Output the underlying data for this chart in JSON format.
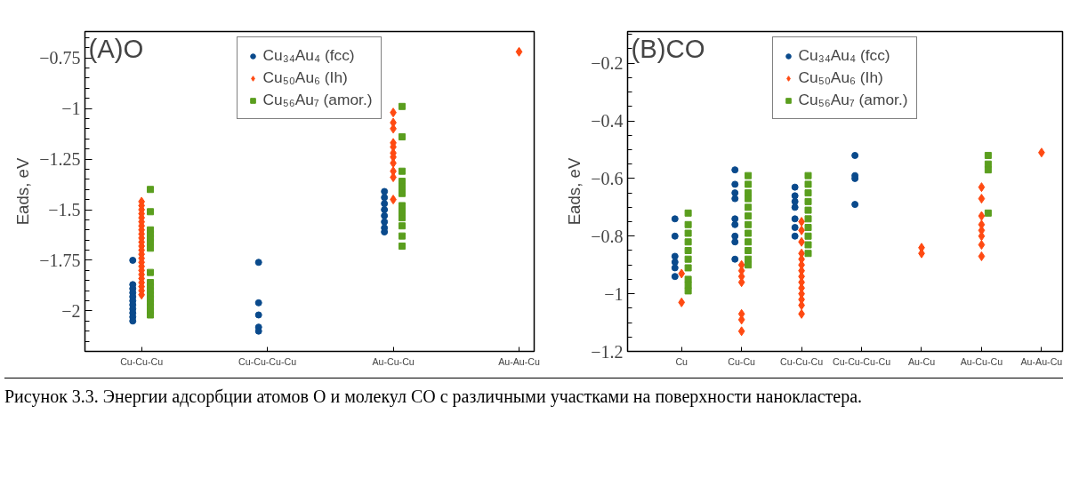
{
  "chart_data": [
    {
      "type": "scatter",
      "title": "(A)O",
      "ylabel": "Eads, eV",
      "categories": [
        "Cu-Cu-Cu",
        "Cu-Cu-Cu-Cu",
        "Au-Cu-Cu",
        "Au-Au-Cu"
      ],
      "ylim": [
        -2.2,
        -0.62
      ],
      "yticks": [
        {
          "value": -0.75,
          "label": "−0.75"
        },
        {
          "value": -1,
          "label": "−1"
        },
        {
          "value": -1.25,
          "label": "−1.25"
        },
        {
          "value": -1.5,
          "label": "−1.5"
        },
        {
          "value": -1.75,
          "label": "−1.75"
        },
        {
          "value": -2,
          "label": "−2"
        }
      ],
      "grid": false,
      "legend": "top",
      "annotations": [
        "Рисунок 3.3. Энергии адсорбции атомов О и молекул СО с различными участками на поверхности нанокластера."
      ],
      "series": [
        {
          "name": "Cu₃₄Au₄ (fcc)",
          "color": "#0a4a8c",
          "marker": "circle",
          "x": [
            "Cu-Cu-Cu",
            "Cu-Cu-Cu",
            "Cu-Cu-Cu",
            "Cu-Cu-Cu",
            "Cu-Cu-Cu",
            "Cu-Cu-Cu",
            "Cu-Cu-Cu",
            "Cu-Cu-Cu",
            "Cu-Cu-Cu",
            "Cu-Cu-Cu",
            "Cu-Cu-Cu",
            "Cu-Cu-Cu-Cu",
            "Cu-Cu-Cu-Cu",
            "Cu-Cu-Cu-Cu",
            "Cu-Cu-Cu-Cu",
            "Cu-Cu-Cu-Cu",
            "Au-Cu-Cu",
            "Au-Cu-Cu",
            "Au-Cu-Cu",
            "Au-Cu-Cu",
            "Au-Cu-Cu",
            "Au-Cu-Cu",
            "Au-Cu-Cu",
            "Au-Cu-Cu"
          ],
          "values": [
            -1.75,
            -1.87,
            -1.89,
            -1.91,
            -1.93,
            -1.95,
            -1.97,
            -1.99,
            -2.01,
            -2.03,
            -2.05,
            -1.76,
            -1.96,
            -2.02,
            -2.08,
            -2.1,
            -1.41,
            -1.44,
            -1.47,
            -1.5,
            -1.53,
            -1.56,
            -1.59,
            -1.61
          ]
        },
        {
          "name": "Cu₅₀Au₆ (Ih)",
          "color": "#ff4a12",
          "marker": "diamond",
          "x": [
            "Cu-Cu-Cu",
            "Cu-Cu-Cu",
            "Cu-Cu-Cu",
            "Cu-Cu-Cu",
            "Cu-Cu-Cu",
            "Cu-Cu-Cu",
            "Cu-Cu-Cu",
            "Cu-Cu-Cu",
            "Cu-Cu-Cu",
            "Cu-Cu-Cu",
            "Cu-Cu-Cu",
            "Cu-Cu-Cu",
            "Cu-Cu-Cu",
            "Cu-Cu-Cu",
            "Cu-Cu-Cu",
            "Cu-Cu-Cu",
            "Cu-Cu-Cu",
            "Cu-Cu-Cu",
            "Cu-Cu-Cu",
            "Cu-Cu-Cu",
            "Cu-Cu-Cu",
            "Cu-Cu-Cu",
            "Cu-Cu-Cu",
            "Cu-Cu-Cu",
            "Au-Cu-Cu",
            "Au-Cu-Cu",
            "Au-Cu-Cu",
            "Au-Cu-Cu",
            "Au-Cu-Cu",
            "Au-Cu-Cu",
            "Au-Cu-Cu",
            "Au-Cu-Cu",
            "Au-Cu-Cu",
            "Au-Cu-Cu",
            "Au-Cu-Cu",
            "Au-Au-Cu"
          ],
          "values": [
            -1.46,
            -1.48,
            -1.5,
            -1.52,
            -1.54,
            -1.56,
            -1.58,
            -1.6,
            -1.62,
            -1.64,
            -1.66,
            -1.68,
            -1.7,
            -1.72,
            -1.74,
            -1.76,
            -1.78,
            -1.8,
            -1.82,
            -1.84,
            -1.86,
            -1.88,
            -1.9,
            -1.92,
            -1.02,
            -1.07,
            -1.1,
            -1.17,
            -1.19,
            -1.22,
            -1.24,
            -1.27,
            -1.31,
            -1.34,
            -1.45,
            -0.72
          ]
        },
        {
          "name": "Cu₅₆Au₇ (amor.)",
          "color": "#5a9e1e",
          "marker": "square",
          "x": [
            "Cu-Cu-Cu",
            "Cu-Cu-Cu",
            "Cu-Cu-Cu",
            "Cu-Cu-Cu",
            "Cu-Cu-Cu",
            "Cu-Cu-Cu",
            "Cu-Cu-Cu",
            "Cu-Cu-Cu",
            "Cu-Cu-Cu",
            "Cu-Cu-Cu",
            "Cu-Cu-Cu",
            "Cu-Cu-Cu",
            "Cu-Cu-Cu",
            "Cu-Cu-Cu",
            "Cu-Cu-Cu",
            "Cu-Cu-Cu",
            "Cu-Cu-Cu",
            "Au-Cu-Cu",
            "Au-Cu-Cu",
            "Au-Cu-Cu",
            "Au-Cu-Cu",
            "Au-Cu-Cu",
            "Au-Cu-Cu",
            "Au-Cu-Cu",
            "Au-Cu-Cu",
            "Au-Cu-Cu",
            "Au-Cu-Cu",
            "Au-Cu-Cu",
            "Au-Cu-Cu"
          ],
          "values": [
            -1.4,
            -1.51,
            -1.6,
            -1.62,
            -1.64,
            -1.66,
            -1.69,
            -1.81,
            -1.86,
            -1.88,
            -1.9,
            -1.92,
            -1.94,
            -1.96,
            -1.98,
            -2.0,
            -2.02,
            -0.99,
            -1.14,
            -1.31,
            -1.36,
            -1.39,
            -1.42,
            -1.48,
            -1.51,
            -1.54,
            -1.58,
            -1.63,
            -1.68
          ]
        }
      ]
    },
    {
      "type": "scatter",
      "title": "(B)CO",
      "ylabel": "Eads, eV",
      "categories": [
        "Cu",
        "Cu-Cu",
        "Cu-Cu-Cu",
        "Cu-Cu-Cu-Cu",
        "Au-Cu",
        "Au-Cu-Cu",
        "Au-Au-Cu"
      ],
      "ylim": [
        -1.2,
        -0.09
      ],
      "yticks": [
        {
          "value": -0.2,
          "label": "−0.2"
        },
        {
          "value": -0.4,
          "label": "−0.4"
        },
        {
          "value": -0.6,
          "label": "−0.6"
        },
        {
          "value": -0.8,
          "label": "−0.8"
        },
        {
          "value": -1,
          "label": "−1"
        },
        {
          "value": -1.2,
          "label": "−1.2"
        }
      ],
      "grid": false,
      "legend": "top",
      "series": [
        {
          "name": "Cu₃₄Au₄ (fcc)",
          "color": "#0a4a8c",
          "marker": "circle",
          "x": [
            "Cu",
            "Cu",
            "Cu",
            "Cu",
            "Cu",
            "Cu",
            "Cu-Cu",
            "Cu-Cu",
            "Cu-Cu",
            "Cu-Cu",
            "Cu-Cu",
            "Cu-Cu",
            "Cu-Cu",
            "Cu-Cu",
            "Cu-Cu",
            "Cu-Cu-Cu",
            "Cu-Cu-Cu",
            "Cu-Cu-Cu",
            "Cu-Cu-Cu",
            "Cu-Cu-Cu",
            "Cu-Cu-Cu",
            "Cu-Cu-Cu",
            "Cu-Cu-Cu-Cu",
            "Cu-Cu-Cu-Cu",
            "Cu-Cu-Cu-Cu",
            "Cu-Cu-Cu-Cu"
          ],
          "values": [
            -0.74,
            -0.8,
            -0.87,
            -0.89,
            -0.91,
            -0.94,
            -0.57,
            -0.62,
            -0.65,
            -0.67,
            -0.74,
            -0.76,
            -0.8,
            -0.82,
            -0.88,
            -0.63,
            -0.66,
            -0.68,
            -0.7,
            -0.74,
            -0.77,
            -0.8,
            -0.52,
            -0.59,
            -0.6,
            -0.69
          ]
        },
        {
          "name": "Cu₅₀Au₆ (Ih)",
          "color": "#ff4a12",
          "marker": "diamond",
          "x": [
            "Cu",
            "Cu",
            "Cu-Cu",
            "Cu-Cu",
            "Cu-Cu",
            "Cu-Cu",
            "Cu-Cu",
            "Cu-Cu",
            "Cu-Cu",
            "Cu-Cu-Cu",
            "Cu-Cu-Cu",
            "Cu-Cu-Cu",
            "Cu-Cu-Cu",
            "Cu-Cu-Cu",
            "Cu-Cu-Cu",
            "Cu-Cu-Cu",
            "Cu-Cu-Cu",
            "Cu-Cu-Cu",
            "Cu-Cu-Cu",
            "Cu-Cu-Cu",
            "Cu-Cu-Cu",
            "Cu-Cu-Cu",
            "Cu-Cu-Cu",
            "Au-Cu",
            "Au-Cu",
            "Au-Cu-Cu",
            "Au-Cu-Cu",
            "Au-Cu-Cu",
            "Au-Cu-Cu",
            "Au-Cu-Cu",
            "Au-Cu-Cu",
            "Au-Cu-Cu",
            "Au-Cu-Cu",
            "Au-Au-Cu"
          ],
          "values": [
            -0.93,
            -1.03,
            -0.9,
            -0.92,
            -0.94,
            -0.96,
            -1.07,
            -1.09,
            -1.13,
            -0.75,
            -0.78,
            -0.82,
            -0.86,
            -0.88,
            -0.9,
            -0.92,
            -0.94,
            -0.96,
            -0.98,
            -1.0,
            -1.02,
            -1.04,
            -1.07,
            -0.84,
            -0.86,
            -0.63,
            -0.67,
            -0.73,
            -0.76,
            -0.78,
            -0.8,
            -0.83,
            -0.87,
            -0.51
          ]
        },
        {
          "name": "Cu₅₆Au₇ (amor.)",
          "color": "#5a9e1e",
          "marker": "square",
          "x": [
            "Cu",
            "Cu",
            "Cu",
            "Cu",
            "Cu",
            "Cu",
            "Cu",
            "Cu",
            "Cu",
            "Cu",
            "Cu-Cu",
            "Cu-Cu",
            "Cu-Cu",
            "Cu-Cu",
            "Cu-Cu",
            "Cu-Cu",
            "Cu-Cu",
            "Cu-Cu",
            "Cu-Cu",
            "Cu-Cu",
            "Cu-Cu",
            "Cu-Cu",
            "Cu-Cu-Cu",
            "Cu-Cu-Cu",
            "Cu-Cu-Cu",
            "Cu-Cu-Cu",
            "Cu-Cu-Cu",
            "Cu-Cu-Cu",
            "Cu-Cu-Cu",
            "Cu-Cu-Cu",
            "Cu-Cu-Cu",
            "Cu-Cu-Cu",
            "Au-Cu-Cu",
            "Au-Cu-Cu",
            "Au-Cu-Cu",
            "Au-Cu-Cu"
          ],
          "values": [
            -0.72,
            -0.76,
            -0.79,
            -0.82,
            -0.85,
            -0.88,
            -0.91,
            -0.95,
            -0.97,
            -0.99,
            -0.59,
            -0.62,
            -0.65,
            -0.67,
            -0.7,
            -0.73,
            -0.76,
            -0.79,
            -0.82,
            -0.85,
            -0.88,
            -0.9,
            -0.59,
            -0.62,
            -0.65,
            -0.68,
            -0.71,
            -0.74,
            -0.77,
            -0.8,
            -0.83,
            -0.86,
            -0.52,
            -0.55,
            -0.57,
            -0.72
          ]
        }
      ]
    }
  ]
}
